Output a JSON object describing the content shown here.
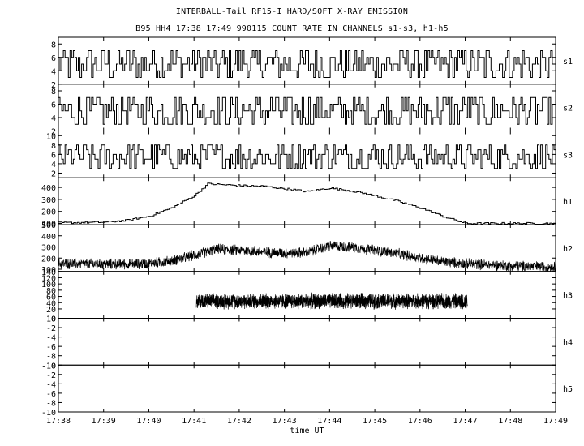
{
  "title": "INTERBALL-Tail RF15-I HARD/SOFT X-RAY EMISSION",
  "subtitle": "B95 HH4 17:38 17:49 990115  COUNT RATE IN CHANNELS s1-s3, h1-h5",
  "chart_data": {
    "type": "line",
    "title": "INTERBALL-Tail RF15-I HARD/SOFT X-RAY EMISSION",
    "subtitle": "B95 HH4 17:38 17:49 990115  COUNT RATE IN CHANNELS s1-s3, h1-h5",
    "xlabel": "time UT",
    "x_ticks": [
      "17:38",
      "17:39",
      "17:40",
      "17:41",
      "17:42",
      "17:43",
      "17:44",
      "17:45",
      "17:46",
      "17:47",
      "17:48",
      "17:49"
    ],
    "xlim": [
      "17:38",
      "17:49"
    ],
    "panels": [
      {
        "name": "s1",
        "ylim": [
          2,
          9
        ],
        "yticks": [
          2,
          4,
          6,
          8
        ],
        "style": "step",
        "description": "noisy counts fluctuating about 5",
        "approx_profile": {
          "times": [
            "17:38",
            "17:49"
          ],
          "mean": [
            5,
            5
          ],
          "spread": 2.5
        }
      },
      {
        "name": "s2",
        "ylim": [
          2,
          9
        ],
        "yticks": [
          2,
          4,
          6,
          8
        ],
        "style": "step",
        "description": "noisy counts fluctuating about 5",
        "approx_profile": {
          "times": [
            "17:38",
            "17:49"
          ],
          "mean": [
            5,
            5
          ],
          "spread": 2.5
        }
      },
      {
        "name": "s3",
        "ylim": [
          1,
          11
        ],
        "yticks": [
          2,
          4,
          6,
          8,
          10
        ],
        "style": "step",
        "description": "noisy counts fluctuating about 5",
        "approx_profile": {
          "times": [
            "17:38",
            "17:49"
          ],
          "mean": [
            5.5,
            5.5
          ],
          "spread": 3
        }
      },
      {
        "name": "h1",
        "ylim": [
          90,
          480
        ],
        "yticks": [
          100,
          200,
          300,
          400
        ],
        "style": "step",
        "approx_profile": {
          "times": [
            "17:38",
            "17:39",
            "17:39.5",
            "17:40",
            "17:40.5",
            "17:41",
            "17:41.3",
            "17:42",
            "17:42.5",
            "17:43",
            "17:43.5",
            "17:44",
            "17:44.5",
            "17:45",
            "17:45.5",
            "17:46",
            "17:46.5",
            "17:47",
            "17:48",
            "17:49"
          ],
          "mean": [
            105,
            110,
            125,
            160,
            230,
            330,
            430,
            415,
            410,
            390,
            365,
            395,
            370,
            330,
            285,
            230,
            160,
            100,
            100,
            100
          ],
          "spread": 8
        }
      },
      {
        "name": "h2",
        "ylim": [
          80,
          500
        ],
        "yticks": [
          100,
          200,
          300,
          400,
          500
        ],
        "style": "dense",
        "approx_profile": {
          "times": [
            "17:38",
            "17:39",
            "17:40",
            "17:40.5",
            "17:41",
            "17:41.5",
            "17:42",
            "17:42.5",
            "17:43",
            "17:43.5",
            "17:44",
            "17:44.5",
            "17:45",
            "17:45.5",
            "17:46",
            "17:46.5",
            "17:47",
            "17:48",
            "17:49"
          ],
          "mean": [
            150,
            145,
            150,
            175,
            225,
            280,
            270,
            255,
            245,
            250,
            310,
            300,
            270,
            240,
            200,
            170,
            150,
            130,
            120
          ],
          "spread": 55
        }
      },
      {
        "name": "h3",
        "ylim": [
          -10,
          140
        ],
        "yticks": [
          -10,
          20,
          40,
          60,
          80,
          100,
          120,
          140
        ],
        "style": "dense",
        "approx_profile": {
          "times": [
            "17:41.05",
            "17:47.05"
          ],
          "mean": [
            45,
            45
          ],
          "spread": 28
        }
      },
      {
        "name": "h4",
        "ylim": [
          -10,
          0
        ],
        "yticks": [
          -10,
          -8,
          -6,
          -4,
          -2,
          0
        ],
        "style": "empty"
      },
      {
        "name": "h5",
        "ylim": [
          -10,
          0
        ],
        "yticks": [
          -10,
          -8,
          -6,
          -4,
          -2,
          0
        ],
        "style": "empty"
      }
    ]
  }
}
